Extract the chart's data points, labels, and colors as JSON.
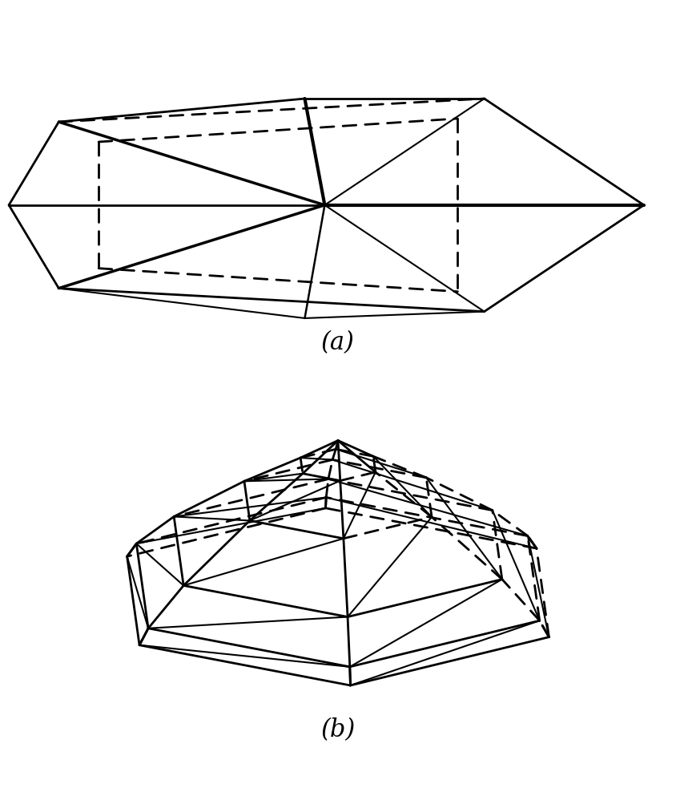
{
  "fig_width": 8.44,
  "fig_height": 9.83,
  "bg_color": "#ffffff",
  "line_color": "#000000",
  "label_a": "(a)",
  "label_b": "(b)",
  "label_fontsize": 22,
  "label_fontstyle": "italic",
  "solid_lw": 2.0,
  "dashed_lw": 2.0,
  "thin_lw": 1.5,
  "dash_pattern": [
    6,
    4
  ]
}
